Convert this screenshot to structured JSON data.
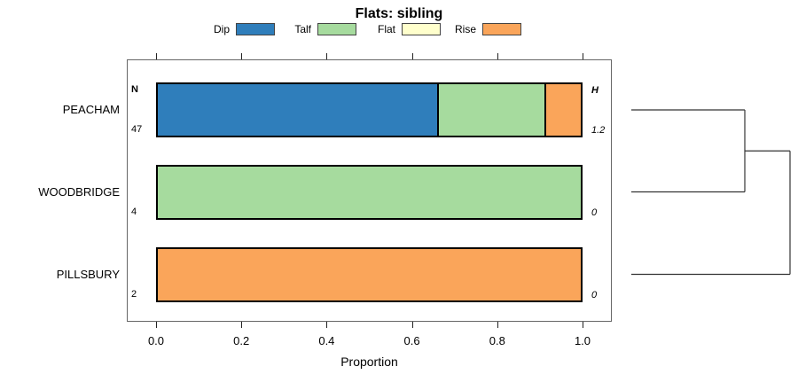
{
  "chart_data": {
    "type": "bar",
    "orientation": "horizontal",
    "stacked": true,
    "title": "Flats: sibling",
    "xlabel": "Proportion",
    "xlim": [
      0,
      1
    ],
    "xticks": [
      0.0,
      0.2,
      0.4,
      0.6,
      0.8,
      1.0
    ],
    "xtick_labels": [
      "0.0",
      "0.2",
      "0.4",
      "0.6",
      "0.8",
      "1.0"
    ],
    "grid": false,
    "legend_position": "top",
    "categories": [
      "PEACHAM",
      "WOODBRIDGE",
      "PILLSBURY"
    ],
    "panel_labels": {
      "n_header": "N",
      "h_header": "H"
    },
    "n_values": [
      "47",
      "4",
      "2"
    ],
    "h_values": [
      "1.2",
      "0",
      "0"
    ],
    "legend": [
      {
        "label": "Dip",
        "color": "#2F7EBB"
      },
      {
        "label": "Talf",
        "color": "#A6DB9E"
      },
      {
        "label": "Flat",
        "color": "#FFFFCC"
      },
      {
        "label": "Rise",
        "color": "#FAA55A"
      }
    ],
    "series": [
      {
        "name": "Dip",
        "values": [
          0.6596,
          0,
          0
        ]
      },
      {
        "name": "Talf",
        "values": [
          0.2553,
          1.0,
          0
        ]
      },
      {
        "name": "Flat",
        "values": [
          0,
          0,
          0
        ]
      },
      {
        "name": "Rise",
        "values": [
          0.0851,
          0,
          1.0
        ]
      }
    ],
    "dendrogram": {
      "leaves": [
        "PEACHAM",
        "WOODBRIDGE",
        "PILLSBURY"
      ],
      "merges": [
        [
          "PEACHAM",
          "WOODBRIDGE"
        ],
        [
          "merge-1",
          "PILLSBURY"
        ]
      ]
    }
  }
}
